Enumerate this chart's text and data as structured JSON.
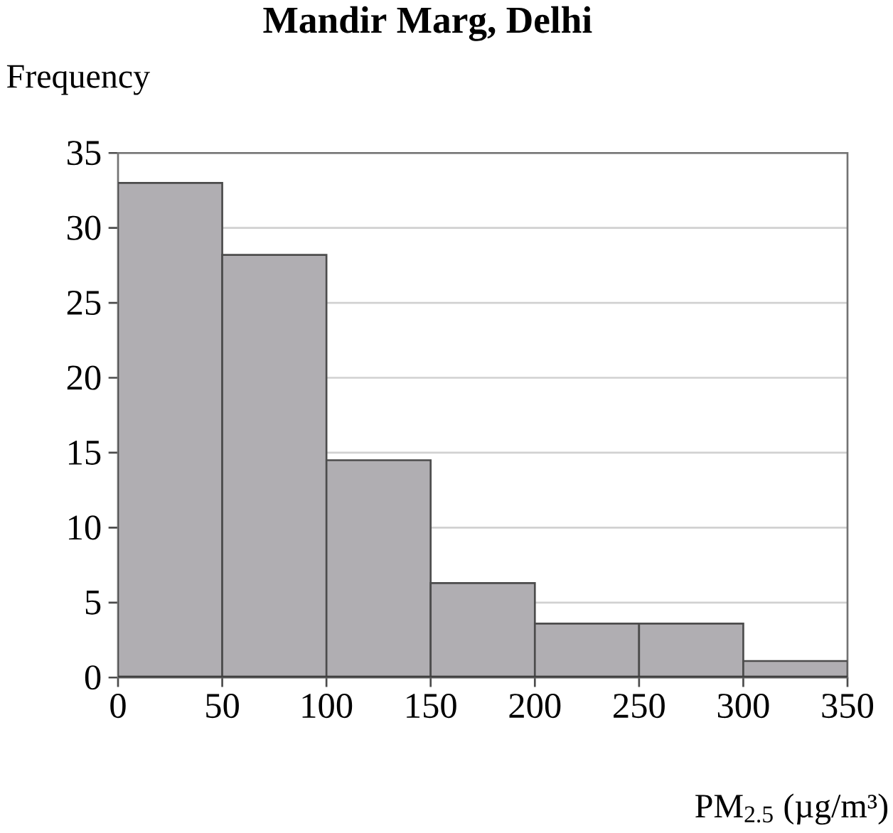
{
  "chart_data": {
    "type": "histogram",
    "title": "Mandir Marg, Delhi",
    "ylabel": "Frequency",
    "xlabel": "PM$_{2.5}$ (µg/m³)",
    "bins": [
      0,
      50,
      100,
      150,
      200,
      250,
      300,
      350
    ],
    "values": [
      33,
      28.2,
      14.5,
      6.3,
      3.6,
      3.6,
      1.1
    ],
    "color": "#b0aeb2",
    "xlim": [
      0,
      350
    ],
    "ylim": [
      0,
      35
    ],
    "xticks": [
      0,
      50,
      100,
      150,
      200,
      250,
      300,
      350
    ],
    "yticks": [
      0,
      5,
      10,
      15,
      20,
      25,
      30,
      35
    ],
    "grid": "y"
  }
}
